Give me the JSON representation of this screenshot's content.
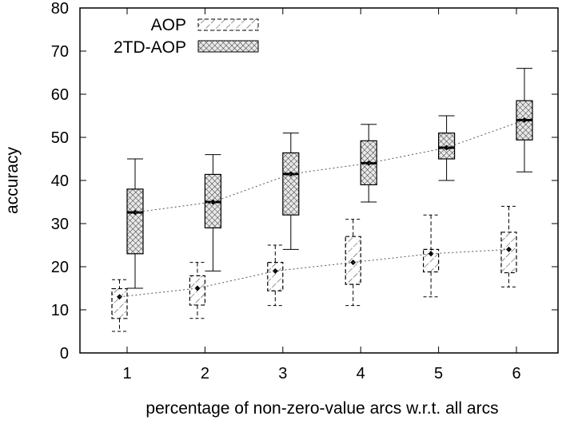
{
  "chart_data": {
    "type": "boxplot",
    "title": "",
    "xlabel": "percentage of non-zero-value arcs w.r.t. all arcs",
    "ylabel": "accuracy",
    "ylim": [
      0,
      80
    ],
    "yticks": [
      0,
      10,
      20,
      30,
      40,
      50,
      60,
      70,
      80
    ],
    "categories": [
      "1",
      "2",
      "3",
      "4",
      "5",
      "6"
    ],
    "legend_position": "top-left",
    "grid": false,
    "series": [
      {
        "name": "AOP",
        "style": "diagonal-hatch-dashed",
        "min": [
          5,
          8,
          11,
          11,
          13,
          15.3
        ],
        "q1": [
          8,
          11.1,
          14.4,
          15.9,
          18.8,
          18.6
        ],
        "q3": [
          14.9,
          17.9,
          21,
          27,
          24,
          28
        ],
        "max": [
          17,
          21,
          25,
          31,
          32,
          34
        ],
        "mean": [
          13,
          15,
          19,
          21,
          23,
          24
        ]
      },
      {
        "name": "2TD-AOP",
        "style": "crosshatch-solid",
        "min": [
          15,
          19,
          24,
          35,
          40,
          42
        ],
        "q1": [
          23,
          29,
          32,
          39,
          45,
          49.4
        ],
        "median": [
          32.6,
          35,
          41.5,
          44,
          47.6,
          54
        ],
        "q3": [
          38,
          41.4,
          46.4,
          49.2,
          51,
          58.5
        ],
        "max": [
          45,
          46,
          51,
          53,
          55,
          66
        ],
        "mean": [
          32.6,
          35,
          41.5,
          44,
          47.6,
          54
        ]
      }
    ]
  }
}
